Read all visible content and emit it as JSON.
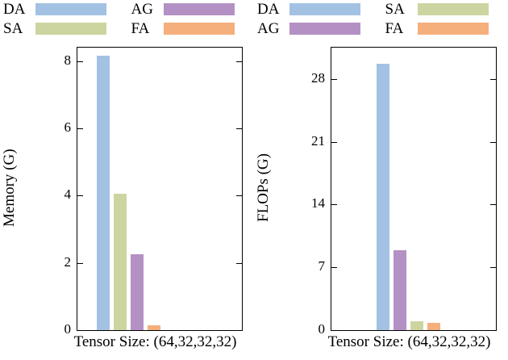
{
  "series_colors": {
    "DA": "#a3c2e3",
    "SA": "#ccd5a0",
    "AG": "#b491c4",
    "FA": "#f5af7d"
  },
  "chart_data": [
    {
      "type": "bar",
      "title": "",
      "ylabel": "Memory (G)",
      "xlabel": "Tensor Size: (64,32,32,32)",
      "ylim": [
        0,
        8.4
      ],
      "yticks": [
        0,
        2,
        4,
        6,
        8
      ],
      "grid": false,
      "legend_position": "top",
      "legend_rows": [
        [
          "DA",
          "AG"
        ],
        [
          "SA",
          "FA"
        ]
      ],
      "categories": [
        "DA",
        "SA",
        "AG",
        "FA"
      ],
      "values": [
        8.15,
        4.05,
        2.25,
        0.15
      ]
    },
    {
      "type": "bar",
      "title": "",
      "ylabel": "FLOPs (G)",
      "xlabel": "Tensor Size: (64,32,32,32)",
      "ylim": [
        0,
        31.5
      ],
      "yticks": [
        0,
        7,
        14,
        21,
        28
      ],
      "grid": false,
      "legend_position": "top",
      "legend_rows": [
        [
          "DA",
          "SA"
        ],
        [
          "AG",
          "FA"
        ]
      ],
      "categories": [
        "DA",
        "AG",
        "SA",
        "FA"
      ],
      "values": [
        29.7,
        8.9,
        1.0,
        0.8
      ]
    }
  ]
}
